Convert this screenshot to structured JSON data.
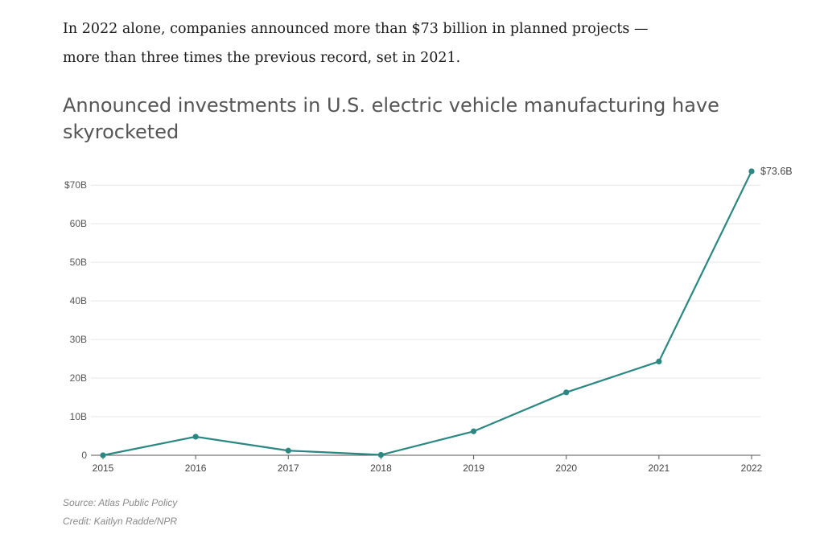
{
  "intro": {
    "line1": "In 2022 alone, companies announced more than $73 billion in planned projects —",
    "line2": "more than three times the previous record, set in 2021."
  },
  "chart_data": {
    "type": "line",
    "title": "Announced investments in U.S. electric vehicle manufacturing have skyrocketed",
    "categories": [
      "2015",
      "2016",
      "2017",
      "2018",
      "2019",
      "2020",
      "2021",
      "2022"
    ],
    "series": [
      {
        "values": [
          0,
          4.8,
          1.2,
          0.1,
          6.2,
          16.3,
          24.3,
          73.6
        ]
      }
    ],
    "y_ticks": [
      0,
      10,
      20,
      30,
      40,
      50,
      60,
      70
    ],
    "y_tick_labels": [
      "0",
      "10B",
      "20B",
      "30B",
      "40B",
      "50B",
      "60B",
      "$70B"
    ],
    "ylim": [
      0,
      74
    ],
    "annotation": "$73.6B",
    "grid": true,
    "color": "#2a8782"
  },
  "footer": {
    "source": "Source: Atlas Public Policy",
    "credit": "Credit: Kaitlyn Radde/NPR"
  }
}
